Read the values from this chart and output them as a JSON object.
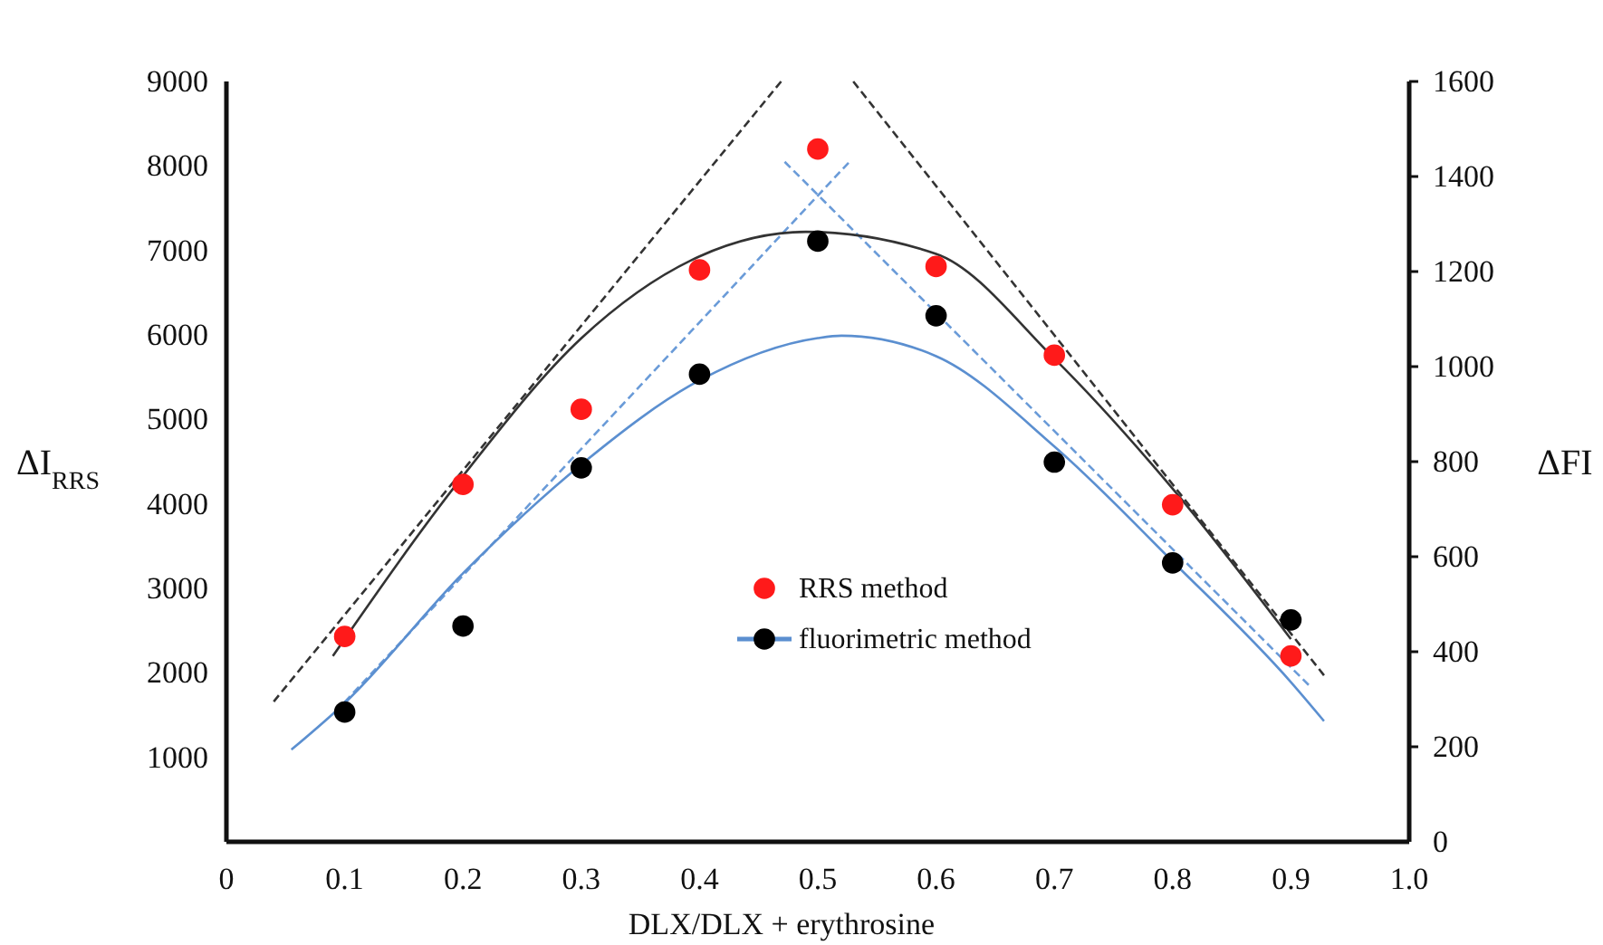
{
  "chart_data": {
    "type": "scatter",
    "xlabel": "DLX/DLX + erythrosine",
    "ylabel": "ΔI$_{RRS}$",
    "y2label": "ΔFI",
    "xlim": [
      0,
      1
    ],
    "xticks": [
      0,
      0.1,
      0.2,
      0.3,
      0.4,
      0.5,
      0.6,
      0.7,
      0.8,
      0.9,
      {
        "value": 1,
        "label": "1.0"
      }
    ],
    "ylim": [
      0,
      9000
    ],
    "yticks": [
      1000,
      2000,
      3000,
      4000,
      5000,
      6000,
      7000,
      8000,
      9000
    ],
    "y2lim": [
      0,
      1600
    ],
    "y2ticks": [
      0,
      200,
      400,
      600,
      800,
      1000,
      1200,
      1400,
      1600
    ],
    "grid": false,
    "legend": "bottom",
    "series": [
      {
        "type": "line",
        "color": "#333333",
        "line_style": "dashed",
        "marker": "none",
        "x": [
          0.04,
          0.469
        ],
        "values": [
          1660,
          9000
        ]
      },
      {
        "type": "line",
        "color": "#333333",
        "line_style": "dashed",
        "marker": "none",
        "x": [
          0.53,
          0.928
        ],
        "values": [
          9000,
          1970
        ]
      },
      {
        "type": "line",
        "color": "#6a9bd8",
        "line_style": "dashed",
        "marker": "none",
        "axis": "y2",
        "x": [
          0.1,
          0.526
        ],
        "values": [
          294,
          1429
        ]
      },
      {
        "type": "line",
        "color": "#6a9bd8",
        "line_style": "dashed",
        "marker": "none",
        "axis": "y2",
        "x": [
          0.472,
          0.915
        ],
        "values": [
          1431,
          330
        ]
      },
      {
        "type": "line",
        "color": "#333333",
        "line_style": "solid",
        "marker": "none",
        "x": [
          0.09,
          0.2,
          0.3,
          0.4,
          0.49,
          0.6,
          0.7,
          0.8,
          0.9
        ],
        "values": [
          2200,
          4330,
          5960,
          6930,
          7220,
          6960,
          5720,
          4180,
          2400
        ]
      },
      {
        "type": "line",
        "color": "#5b8fd0",
        "line_style": "solid",
        "marker": "none",
        "axis": "y2",
        "x": [
          0.055,
          0.1,
          0.2,
          0.3,
          0.4,
          0.5,
          0.52,
          0.6,
          0.7,
          0.8,
          0.9,
          0.928
        ],
        "values": [
          194,
          292,
          565,
          794,
          971,
          1060,
          1065,
          1022,
          832,
          590,
          336,
          254
        ]
      },
      {
        "name": "RRS method",
        "color": "#ff1a1a",
        "marker": "circle",
        "x": [
          0.1,
          0.2,
          0.3,
          0.4,
          0.5,
          0.6,
          0.7,
          0.8,
          0.9
        ],
        "values": [
          2430,
          4230,
          5120,
          6770,
          8200,
          6810,
          5760,
          3990,
          2200
        ]
      },
      {
        "name": "fluorimetric method",
        "color": "#000000",
        "marker": "circle",
        "axis": "y2",
        "x": [
          0.1,
          0.2,
          0.3,
          0.4,
          0.5,
          0.6,
          0.7,
          0.8,
          0.9
        ],
        "values": [
          273,
          454,
          787,
          984,
          1264,
          1107,
          799,
          587,
          467
        ]
      }
    ]
  }
}
